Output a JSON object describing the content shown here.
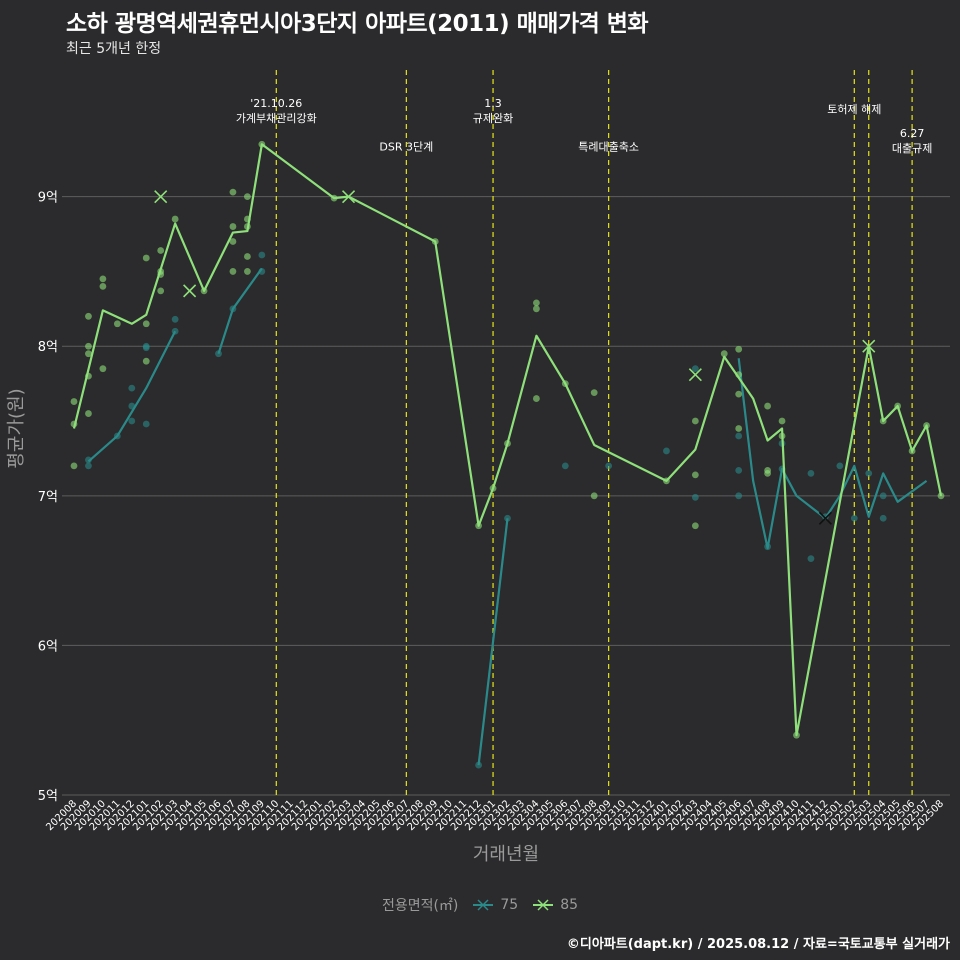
{
  "title": "소하 광명역세권휴먼시아3단지 아파트(2011) 매매가격 변화",
  "subtitle": "최근 5개년 한정",
  "caption": "©디아파트(dapt.kr) / 2025.08.12 / 자료=국토교통부 실거래가",
  "legend": {
    "title": "전용면적(㎡)",
    "items": [
      {
        "label": "75",
        "color": "#2a8a8a"
      },
      {
        "label": "85",
        "color": "#8ee07a"
      }
    ]
  },
  "colors": {
    "background": "#2b2a2c",
    "grid": "#5e5e5e",
    "event_line": "#e6e619",
    "text": "#ffffff",
    "axis_text": "#9a9a9a",
    "series_75": "#2a8a8a",
    "series_85": "#8ee07a"
  },
  "chart_data": {
    "type": "line",
    "xlabel": "거래년월",
    "ylabel": "평균가(원)",
    "ylim": [
      5,
      9.9
    ],
    "y_ticks": [
      {
        "value": 5,
        "label": "5억"
      },
      {
        "value": 6,
        "label": "6억"
      },
      {
        "value": 7,
        "label": "7억"
      },
      {
        "value": 8,
        "label": "8억"
      },
      {
        "value": 9,
        "label": "9억"
      }
    ],
    "grid": true,
    "legend_position": "bottom",
    "categories": [
      "202008",
      "202009",
      "202010",
      "202011",
      "202012",
      "202101",
      "202102",
      "202103",
      "202104",
      "202105",
      "202106",
      "202107",
      "202108",
      "202109",
      "202110",
      "202111",
      "202112",
      "202201",
      "202202",
      "202203",
      "202204",
      "202205",
      "202206",
      "202207",
      "202208",
      "202209",
      "202210",
      "202211",
      "202212",
      "202301",
      "202302",
      "202303",
      "202304",
      "202305",
      "202306",
      "202307",
      "202308",
      "202309",
      "202310",
      "202311",
      "202312",
      "202401",
      "202402",
      "202403",
      "202404",
      "202405",
      "202406",
      "202407",
      "202408",
      "202409",
      "202410",
      "202411",
      "202412",
      "202501",
      "202502",
      "202503",
      "202504",
      "202505",
      "202506",
      "202507",
      "202508"
    ],
    "events": [
      {
        "x": 14,
        "text": [
          "'21.10.26",
          "가계부채관리강화"
        ],
        "text_y": 9.52
      },
      {
        "x": 23,
        "text": [
          "DSR 3단계"
        ],
        "text_y": 9.33
      },
      {
        "x": 29,
        "text": [
          "1.3",
          "규제완화"
        ],
        "text_y": 9.52
      },
      {
        "x": 37,
        "text": [
          "특례대출축소"
        ],
        "text_y": 9.33
      },
      {
        "x": 54,
        "text": [
          "토허제 해제"
        ],
        "text_y": 9.58
      },
      {
        "x": 55,
        "text": [],
        "text_y": 9.58
      },
      {
        "x": 58,
        "text": [
          "6.27",
          "대출규제"
        ],
        "text_y": 9.32
      }
    ],
    "series": [
      {
        "name": "75",
        "color": "#2a8a8a",
        "segments": [
          [
            [
              1,
              7.23
            ],
            [
              3,
              7.4
            ],
            [
              5,
              7.72
            ],
            [
              7,
              8.1
            ]
          ],
          [
            [
              10,
              7.95
            ],
            [
              11,
              8.25
            ],
            [
              13,
              8.52
            ]
          ],
          [
            [
              28,
              5.2
            ],
            [
              30,
              6.85
            ]
          ],
          [
            [
              46,
              7.92
            ],
            [
              47,
              7.1
            ],
            [
              48,
              6.65
            ],
            [
              49,
              7.18
            ],
            [
              50,
              7.0
            ],
            [
              52,
              6.85
            ],
            [
              53,
              7.0
            ],
            [
              54,
              7.2
            ],
            [
              55,
              6.86
            ],
            [
              56,
              7.15
            ],
            [
              57,
              6.96
            ],
            [
              59,
              7.1
            ]
          ]
        ],
        "points": [
          [
            1,
            7.2
          ],
          [
            1,
            7.24
          ],
          [
            3,
            7.4
          ],
          [
            4,
            7.5
          ],
          [
            4,
            7.6
          ],
          [
            4,
            7.72
          ],
          [
            5,
            7.48
          ],
          [
            5,
            7.99
          ],
          [
            5,
            8.0
          ],
          [
            7,
            8.1
          ],
          [
            7,
            8.18
          ],
          [
            10,
            7.95
          ],
          [
            11,
            8.25
          ],
          [
            13,
            8.5
          ],
          [
            13,
            8.61
          ],
          [
            28,
            5.2
          ],
          [
            30,
            6.85
          ],
          [
            34,
            7.2
          ],
          [
            37,
            7.2
          ],
          [
            41,
            7.3
          ],
          [
            43,
            7.85
          ],
          [
            43,
            6.99
          ],
          [
            46,
            7.4
          ],
          [
            46,
            7.17
          ],
          [
            46,
            7.0
          ],
          [
            48,
            6.66
          ],
          [
            49,
            7.35
          ],
          [
            49,
            7.18
          ],
          [
            51,
            6.58
          ],
          [
            51,
            7.15
          ],
          [
            52,
            6.86
          ],
          [
            53,
            7.2
          ],
          [
            54,
            6.85
          ],
          [
            55,
            7.15
          ],
          [
            56,
            7.0
          ],
          [
            56,
            6.85
          ]
        ],
        "markers": [
          [
            52,
            6.85
          ]
        ]
      },
      {
        "name": "85",
        "color": "#8ee07a",
        "segments": [
          [
            [
              0,
              7.45
            ],
            [
              2,
              8.24
            ],
            [
              4,
              8.15
            ],
            [
              5,
              8.21
            ],
            [
              7,
              8.82
            ],
            [
              9,
              8.37
            ],
            [
              11,
              8.76
            ],
            [
              12,
              8.77
            ],
            [
              13,
              9.35
            ],
            [
              18,
              8.99
            ],
            [
              19,
              9.0
            ],
            [
              25,
              8.7
            ],
            [
              28,
              6.8
            ],
            [
              29,
              7.05
            ],
            [
              30,
              7.35
            ],
            [
              32,
              8.07
            ],
            [
              34,
              7.75
            ],
            [
              36,
              7.34
            ],
            [
              41,
              7.1
            ],
            [
              43,
              7.31
            ],
            [
              45,
              7.93
            ],
            [
              47,
              7.65
            ],
            [
              48,
              7.37
            ],
            [
              49,
              7.45
            ],
            [
              50,
              5.4
            ],
            [
              55,
              8.0
            ],
            [
              56,
              7.5
            ],
            [
              57,
              7.6
            ],
            [
              58,
              7.3
            ],
            [
              59,
              7.47
            ],
            [
              60,
              7.0
            ]
          ]
        ],
        "points": [
          [
            0,
            7.2
          ],
          [
            0,
            7.48
          ],
          [
            0,
            7.63
          ],
          [
            1,
            7.55
          ],
          [
            1,
            7.8
          ],
          [
            1,
            7.95
          ],
          [
            1,
            8.0
          ],
          [
            1,
            8.2
          ],
          [
            2,
            7.85
          ],
          [
            2,
            8.4
          ],
          [
            2,
            8.45
          ],
          [
            3,
            8.15
          ],
          [
            5,
            7.9
          ],
          [
            5,
            8.15
          ],
          [
            5,
            8.59
          ],
          [
            6,
            8.37
          ],
          [
            6,
            8.48
          ],
          [
            6,
            8.5
          ],
          [
            6,
            8.64
          ],
          [
            7,
            8.85
          ],
          [
            9,
            8.37
          ],
          [
            11,
            8.5
          ],
          [
            11,
            8.7
          ],
          [
            11,
            8.8
          ],
          [
            11,
            9.03
          ],
          [
            12,
            8.5
          ],
          [
            12,
            8.6
          ],
          [
            12,
            8.8
          ],
          [
            12,
            8.85
          ],
          [
            12,
            9.0
          ],
          [
            13,
            9.35
          ],
          [
            18,
            8.99
          ],
          [
            25,
            8.7
          ],
          [
            28,
            6.8
          ],
          [
            29,
            7.05
          ],
          [
            30,
            7.35
          ],
          [
            32,
            7.65
          ],
          [
            32,
            8.25
          ],
          [
            32,
            8.29
          ],
          [
            34,
            7.75
          ],
          [
            36,
            7.0
          ],
          [
            36,
            7.69
          ],
          [
            41,
            7.1
          ],
          [
            43,
            6.8
          ],
          [
            43,
            7.14
          ],
          [
            43,
            7.5
          ],
          [
            45,
            7.95
          ],
          [
            46,
            7.45
          ],
          [
            46,
            7.68
          ],
          [
            46,
            7.81
          ],
          [
            46,
            7.98
          ],
          [
            48,
            7.15
          ],
          [
            48,
            7.17
          ],
          [
            48,
            7.6
          ],
          [
            49,
            7.4
          ],
          [
            49,
            7.5
          ],
          [
            50,
            5.4
          ],
          [
            56,
            7.5
          ],
          [
            57,
            7.6
          ],
          [
            58,
            7.3
          ],
          [
            59,
            7.47
          ],
          [
            60,
            7.0
          ]
        ],
        "markers": [
          [
            6,
            9.0
          ],
          [
            8,
            8.37
          ],
          [
            19,
            9.0
          ],
          [
            43,
            7.81
          ],
          [
            55,
            8.0
          ]
        ]
      }
    ]
  }
}
